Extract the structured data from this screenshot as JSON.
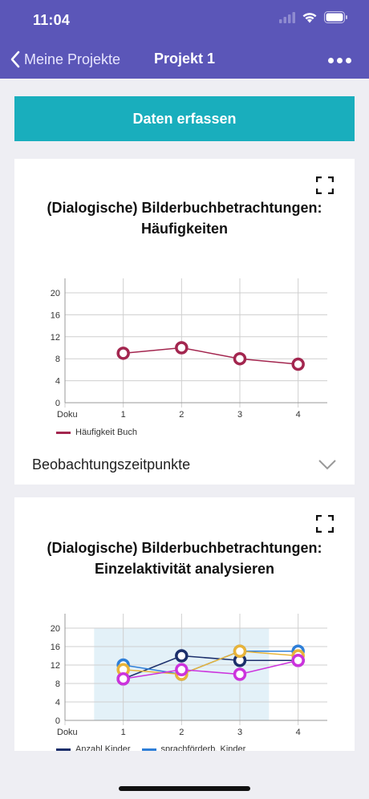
{
  "status_bar": {
    "time": "11:04"
  },
  "nav": {
    "back_label": "Meine Projekte",
    "title": "Projekt 1"
  },
  "capture_button": {
    "label": "Daten erfassen"
  },
  "colors": {
    "accent": "#5b56b8",
    "button": "#19aebd"
  },
  "charts": [
    {
      "title_line1": "(Dialogische) Bilderbuchbetrachtungen:",
      "title_line2": "Häufigkeiten",
      "dropdown_label": "Beobachtungszeitpunkte"
    },
    {
      "title_line1": "(Dialogische) Bilderbuchbetrachtungen:",
      "title_line2": "Einzelaktivität analysieren"
    }
  ],
  "chart_data": [
    {
      "type": "line",
      "x": [
        "Doku",
        "1",
        "2",
        "3",
        "4"
      ],
      "ylim": [
        0,
        20
      ],
      "yticks": [
        0,
        4,
        8,
        12,
        16,
        20
      ],
      "grid": true,
      "legend": "bottom-left",
      "series": [
        {
          "name": "Häufigkeit Buch",
          "color": "#a3264f",
          "x": [
            "1",
            "2",
            "3",
            "4"
          ],
          "values": [
            9,
            10,
            8,
            7
          ]
        }
      ]
    },
    {
      "type": "line",
      "x": [
        "Doku",
        "1",
        "2",
        "3",
        "4"
      ],
      "ylim": [
        0,
        20
      ],
      "yticks": [
        0,
        4,
        8,
        12,
        16,
        20
      ],
      "grid": true,
      "legend": "bottom-left",
      "series": [
        {
          "name": "Anzahl Kinder",
          "color": "#1c2f6b",
          "x": [
            "1",
            "2",
            "3",
            "4"
          ],
          "values": [
            9,
            14,
            13,
            13
          ]
        },
        {
          "name": "sprachförderb. Kinder",
          "color": "#2f7fd8",
          "x": [
            "1",
            "2",
            "3",
            "4"
          ],
          "values": [
            12,
            10,
            15,
            15
          ]
        },
        {
          "name": "",
          "color": "#e8b43a",
          "x": [
            "1",
            "2",
            "3",
            "4"
          ],
          "values": [
            11,
            10,
            15,
            14
          ]
        },
        {
          "name": "",
          "color": "#cc33dd",
          "x": [
            "1",
            "2",
            "3",
            "4"
          ],
          "values": [
            9,
            11,
            10,
            13
          ]
        }
      ]
    }
  ]
}
